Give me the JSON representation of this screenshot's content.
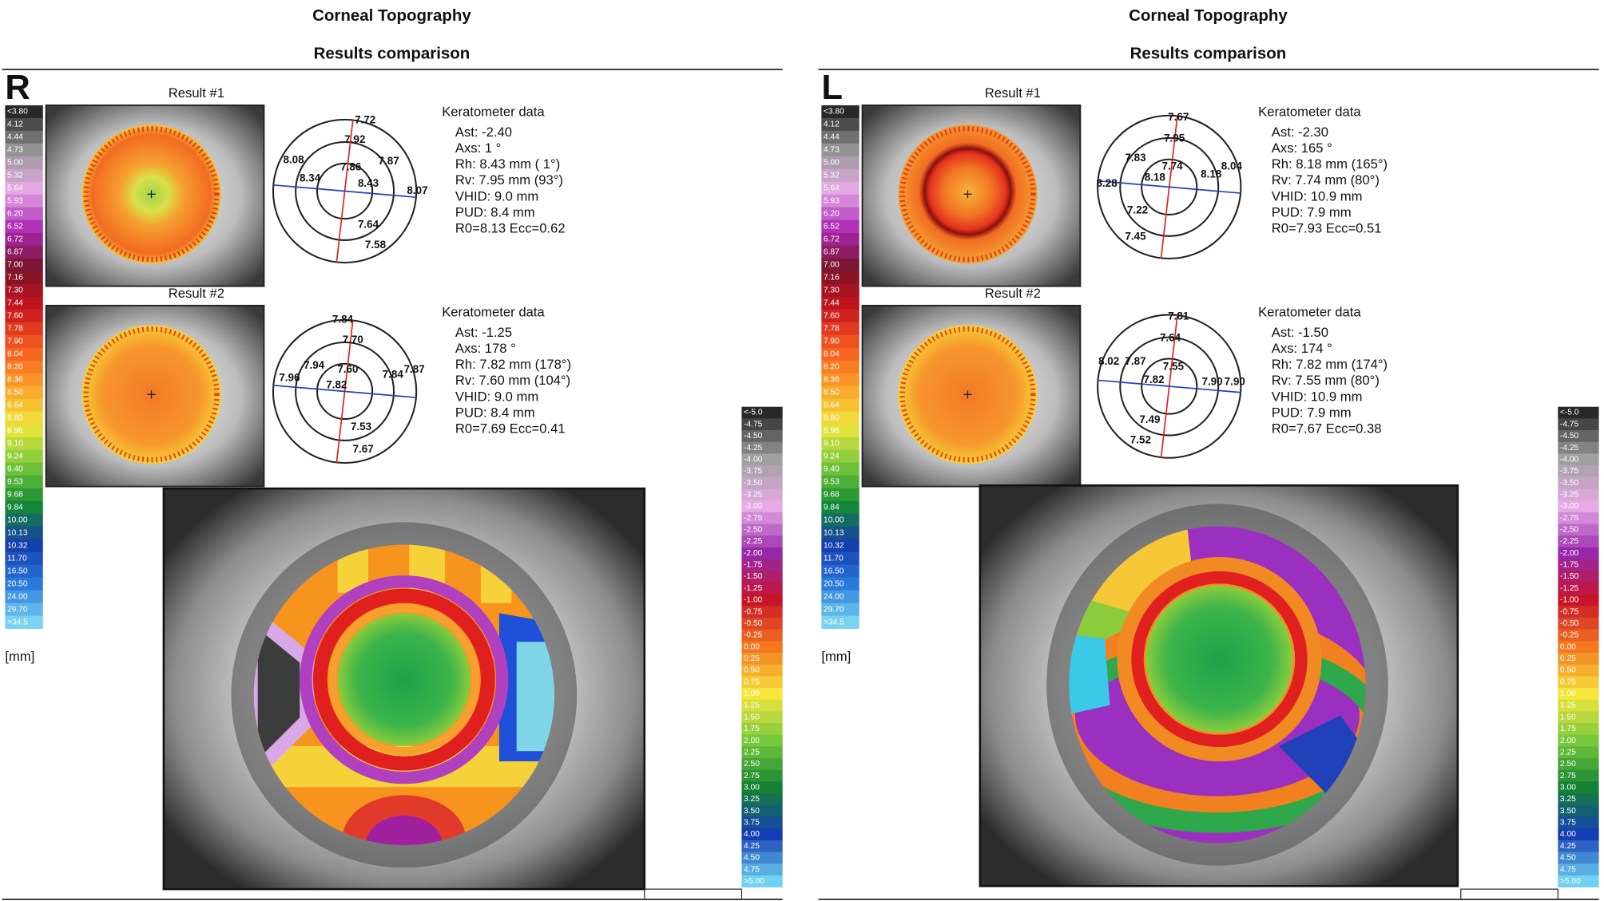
{
  "panels": [
    {
      "title": "Corneal Topography",
      "subtitle": "Results comparison",
      "eye": "R",
      "unit": "[mm]",
      "results": [
        {
          "label": "Result #1",
          "ring_values": [
            "7.72",
            "7.92",
            "8.08",
            "7.86",
            "7.87",
            "8.34",
            "8.43",
            "8.07",
            "7.64",
            "7.58"
          ],
          "keratometer": {
            "heading": "Keratometer data",
            "lines": [
              "Ast: -2.40",
              "Axs:  1 °",
              "Rh: 8.43 mm ( 1°)",
              "Rv: 7.95 mm (93°)",
              "VHID: 9.0 mm",
              "PUD: 8.4 mm",
              "R0=8.13   Ecc=0.62"
            ]
          }
        },
        {
          "label": "Result #2",
          "ring_values": [
            "7.84",
            "7.70",
            "7.94",
            "7.60",
            "7.87",
            "7.96",
            "7.82",
            "7.84",
            "7.53",
            "7.67"
          ],
          "keratometer": {
            "heading": "Keratometer data",
            "lines": [
              "Ast: -1.25",
              "Axs: 178 °",
              "Rh: 7.82 mm (178°)",
              "Rv: 7.60 mm (104°)",
              "VHID: 9.0 mm",
              "PUD: 8.4 mm",
              "R0=7.69   Ecc=0.41"
            ]
          }
        }
      ]
    },
    {
      "title": "Corneal Topography",
      "subtitle": "Results comparison",
      "eye": "L",
      "unit": "[mm]",
      "results": [
        {
          "label": "Result #1",
          "ring_values": [
            "7.67",
            "7.95",
            "7.83",
            "7.74",
            "8.04",
            "8.18",
            "8.18",
            "8.28",
            "7.22",
            "7.45"
          ],
          "keratometer": {
            "heading": "Keratometer data",
            "lines": [
              "Ast: -2.30",
              "Axs: 165 °",
              "Rh: 8.18 mm (165°)",
              "Rv: 7.74 mm (80°)",
              "VHID: 10.9 mm",
              "PUD: 7.9 mm",
              "R0=7.93   Ecc=0.51"
            ]
          }
        },
        {
          "label": "Result #2",
          "ring_values": [
            "7.81",
            "7.64",
            "8.02",
            "7.87",
            "7.55",
            "7.82",
            "7.90",
            "7.90",
            "7.49",
            "7.52"
          ],
          "keratometer": {
            "heading": "Keratometer data",
            "lines": [
              "Ast: -1.50",
              "Axs: 174 °",
              "Rh: 7.82 mm (174°)",
              "Rv: 7.55 mm (80°)",
              "VHID: 10.9 mm",
              "PUD: 7.9 mm",
              "R0=7.67   Ecc=0.38"
            ]
          }
        }
      ]
    }
  ],
  "axial_scale": [
    "<3.80",
    "4.12",
    "4.44",
    "4.73",
    "5.00",
    "5.32",
    "5.64",
    "5.93",
    "6.20",
    "6.52",
    "6.72",
    "6.87",
    "7.00",
    "7.16",
    "7.30",
    "7.44",
    "7.60",
    "7.78",
    "7.90",
    "8.04",
    "8.20",
    "8.36",
    "8.50",
    "8.64",
    "8.80",
    "8.96",
    "9.10",
    "9.24",
    "9.40",
    "9.53",
    "9.68",
    "9.84",
    "10.00",
    "10.13",
    "10.32",
    "11.70",
    "16.50",
    "20.50",
    "24.00",
    "29.70",
    ">34.5"
  ],
  "difference_scale": [
    "<-5.0",
    "-4.75",
    "-4.50",
    "-4.25",
    "-4.00",
    "-3.75",
    "-3.50",
    "-3.25",
    "-3.00",
    "-2.75",
    "-2.50",
    "-2.25",
    "-2.00",
    "-1.75",
    "-1.50",
    "-1.25",
    "-1.00",
    "-0.75",
    "-0.50",
    "-0.25",
    "0.00",
    "0.25",
    "0.50",
    "0.75",
    "1.00",
    "1.25",
    "1.50",
    "1.75",
    "2.00",
    "2.25",
    "2.50",
    "2.75",
    "3.00",
    "3.25",
    "3.50",
    "3.75",
    "4.00",
    "4.25",
    "4.50",
    "4.75",
    ">5.00"
  ]
}
